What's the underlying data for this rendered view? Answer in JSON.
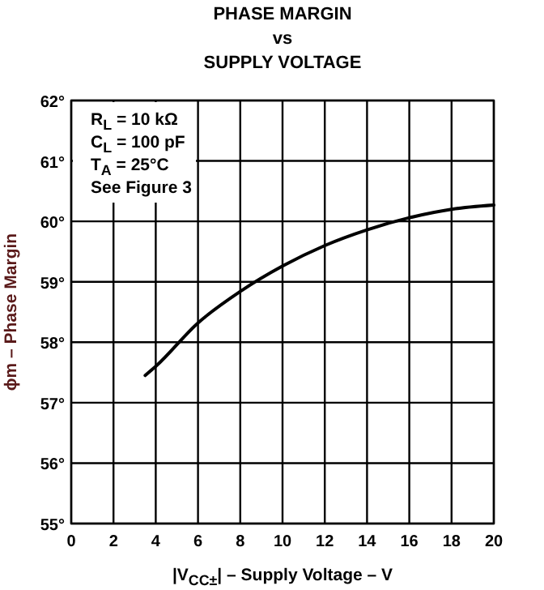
{
  "chart_data": {
    "type": "line",
    "title": "PHASE MARGIN\nvs\nSUPPLY VOLTAGE",
    "xlabel": "|V$_{CC±}$| – Supply Voltage – V",
    "ylabel": "ϕm – Phase Margin",
    "x": [
      3.5,
      4,
      6,
      8,
      10,
      12,
      14,
      16,
      18,
      20
    ],
    "series": [
      {
        "color": "#000000",
        "values": [
          57.45,
          57.6,
          58.32,
          58.84,
          59.26,
          59.6,
          59.86,
          60.06,
          60.2,
          60.27
        ]
      }
    ],
    "xlim": [
      0,
      20
    ],
    "xticks": [
      0,
      2,
      4,
      6,
      8,
      10,
      12,
      14,
      16,
      18,
      20
    ],
    "ylim": [
      55,
      62
    ],
    "yticks": [
      {
        "value": 55,
        "label": "55°"
      },
      {
        "value": 56,
        "label": "56°"
      },
      {
        "value": 57,
        "label": "57°"
      },
      {
        "value": 58,
        "label": "58°"
      },
      {
        "value": 59,
        "label": "59°"
      },
      {
        "value": 60,
        "label": "60°"
      },
      {
        "value": 61,
        "label": "61°"
      },
      {
        "value": 62,
        "label": "62°"
      }
    ],
    "grid": true,
    "marker": "none",
    "line_style": "solid",
    "annotations": [
      "R$_{L}$ = 10 kΩ",
      "C$_{L}$ = 100 pF",
      "T$_{A}$ = 25°C",
      "See Figure 3"
    ]
  }
}
